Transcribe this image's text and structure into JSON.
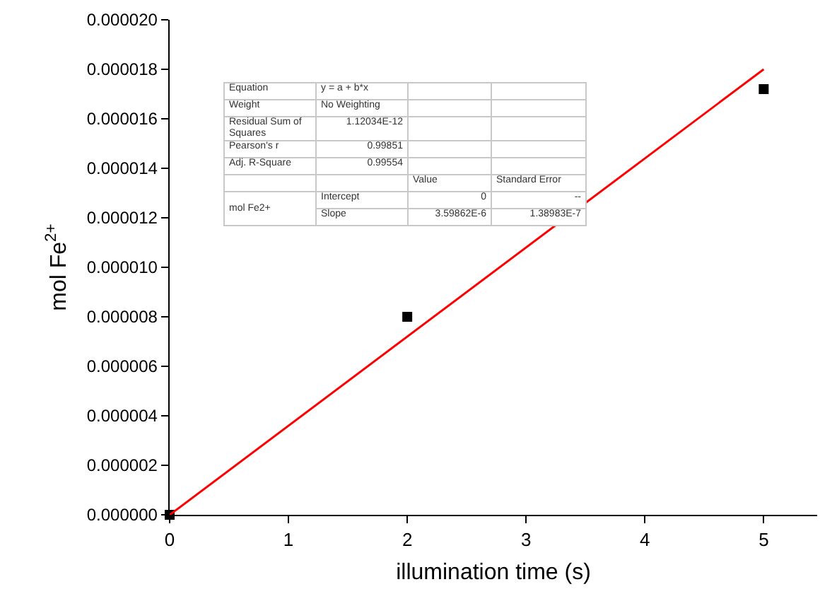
{
  "chart_data": {
    "type": "scatter",
    "xlabel": "illumination time (s)",
    "ylabel": "mol Fe$^{2+}$",
    "xlim": [
      0,
      5.45
    ],
    "xticks": [
      0,
      1,
      2,
      3,
      4,
      5
    ],
    "ylim": [
      0,
      2e-05
    ],
    "yticks": [
      {
        "value": 0,
        "label": "0.000000"
      },
      {
        "value": 2e-06,
        "label": "0.000002"
      },
      {
        "value": 4e-06,
        "label": "0.000004"
      },
      {
        "value": 6e-06,
        "label": "0.000006"
      },
      {
        "value": 8e-06,
        "label": "0.000008"
      },
      {
        "value": 1e-05,
        "label": "0.000010"
      },
      {
        "value": 1.2e-05,
        "label": "0.000012"
      },
      {
        "value": 1.4e-05,
        "label": "0.000014"
      },
      {
        "value": 1.6e-05,
        "label": "0.000016"
      },
      {
        "value": 1.8e-05,
        "label": "0.000018"
      },
      {
        "value": 2e-05,
        "label": "0.000020"
      }
    ],
    "grid": false,
    "marker": "square",
    "series": [
      {
        "color": "#000000",
        "x": [
          0,
          2,
          5
        ],
        "values": [
          0,
          8e-06,
          1.72e-05
        ]
      },
      {
        "type": "line",
        "color": "#ff0000",
        "x": [
          0,
          5
        ],
        "values": [
          0,
          1.8e-05
        ],
        "marker": "none"
      }
    ],
    "annotations": [
      "Equation",
      "y = a + b*x",
      "Weight",
      "No Weighting",
      "Residual Sum of Squares",
      "1.12034E-12",
      "Pearson's r",
      "0.99851",
      "Adj. R-Square",
      "0.99554",
      "Value",
      "Standard Error",
      "mol Fe2+",
      "Intercept",
      "0",
      "--",
      "Slope",
      "3.59862E-6",
      "1.38983E-7"
    ]
  }
}
